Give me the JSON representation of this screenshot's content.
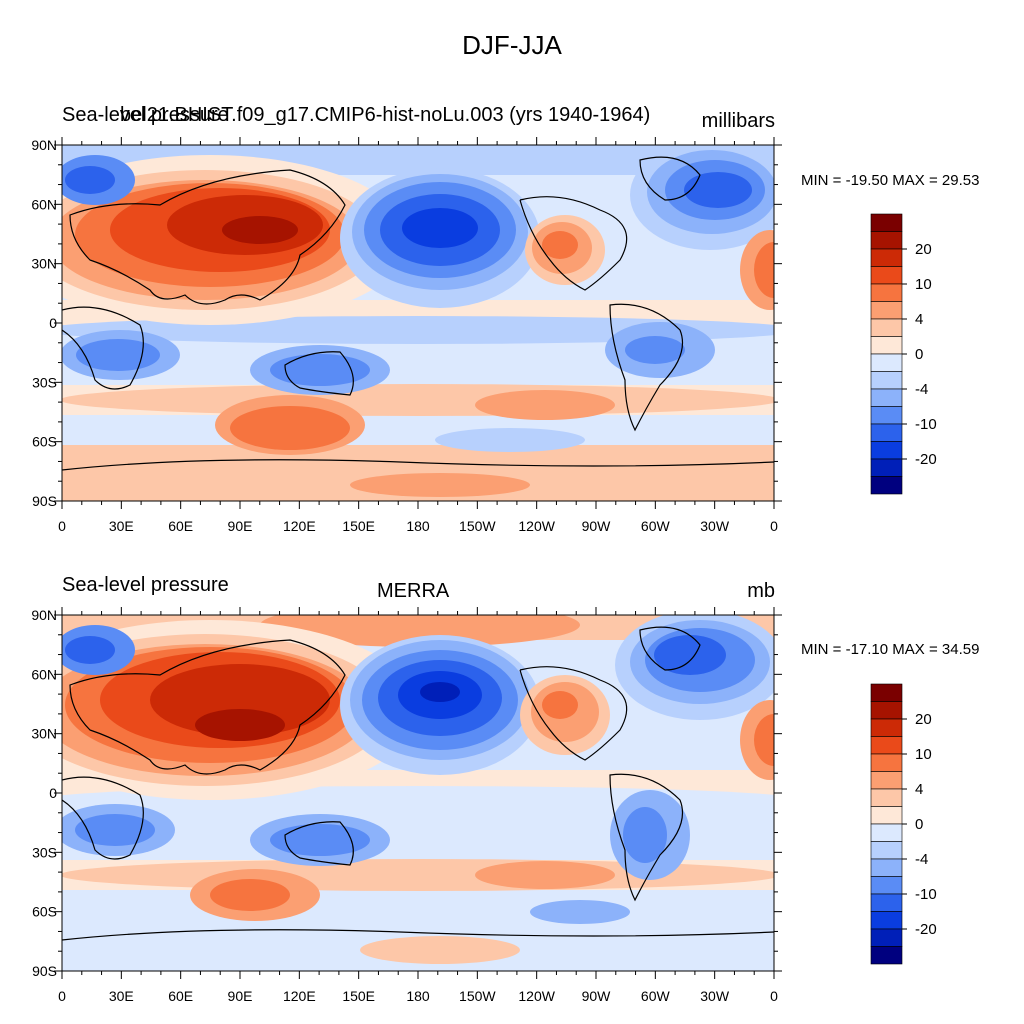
{
  "figure": {
    "title": "DJF-JJA",
    "palette": [
      "#00007f",
      "#001fb8",
      "#0a3de0",
      "#2c62ec",
      "#5a8cf5",
      "#8cb2fa",
      "#b7d0fd",
      "#dce9fe",
      "#fee8d8",
      "#fdc7a8",
      "#fb9f72",
      "#f6743f",
      "#ea4a1a",
      "#cc2a06",
      "#a61300",
      "#7a0000"
    ]
  },
  "panels": [
    {
      "left_label": "Sea-level pressure",
      "center_label": "bel21.BHIST.f09_g17.CMIP6-hist-noLu.003 (yrs 1940-1964)",
      "right_label": "millibars",
      "min_max": "MIN = -19.50 MAX =  29.53"
    },
    {
      "left_label": "Sea-level pressure",
      "center_label": "MERRA",
      "right_label": "mb",
      "min_max": "MIN = -17.10 MAX =  34.59"
    }
  ],
  "axes": {
    "lon_ticks": [
      "0",
      "30E",
      "60E",
      "90E",
      "120E",
      "150E",
      "180",
      "150W",
      "120W",
      "90W",
      "60W",
      "30W",
      "0"
    ],
    "lat_ticks": [
      "90N",
      "60N",
      "30N",
      "0",
      "30S",
      "60S",
      "90S"
    ]
  },
  "colorbar": {
    "labels": [
      "20",
      "10",
      "4",
      "0",
      "-4",
      "-10",
      "-20"
    ]
  }
}
